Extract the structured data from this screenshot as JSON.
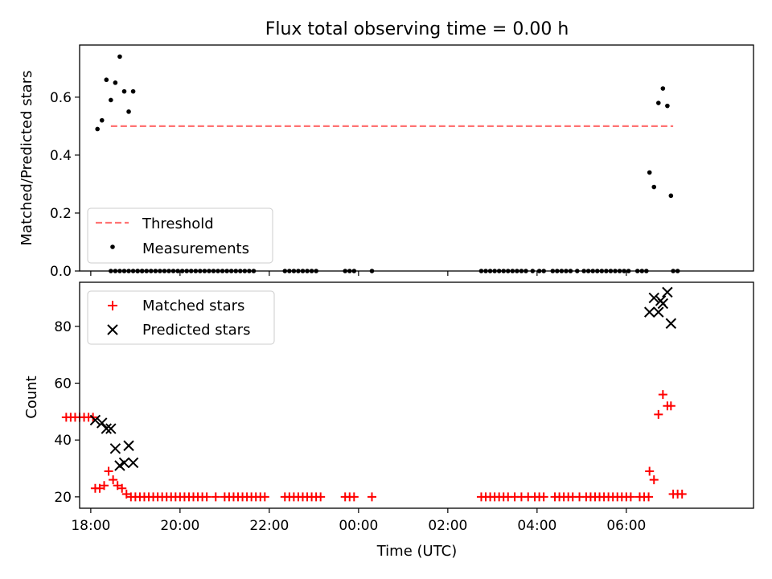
{
  "chart_data": {
    "title": "Flux total observing time = 0.00 h",
    "xlabel": "Time (UTC)",
    "x_unit": "hours since 00:00 UTC (negative = previous day)",
    "xlim": [
      -6.25,
      8.85
    ],
    "x_ticks": [
      {
        "x": -6,
        "label": "18:00"
      },
      {
        "x": -4,
        "label": "20:00"
      },
      {
        "x": -2,
        "label": "22:00"
      },
      {
        "x": 0,
        "label": "00:00"
      },
      {
        "x": 2,
        "label": "02:00"
      },
      {
        "x": 4,
        "label": "04:00"
      },
      {
        "x": 6,
        "label": "06:00"
      }
    ],
    "panels": [
      {
        "id": "ratio",
        "type": "scatter",
        "ylabel": "Matched/Predicted stars",
        "ylim": [
          0,
          0.78
        ],
        "y_ticks": [
          {
            "y": 0.0,
            "label": "0.0"
          },
          {
            "y": 0.2,
            "label": "0.2"
          },
          {
            "y": 0.4,
            "label": "0.4"
          },
          {
            "y": 0.6,
            "label": "0.6"
          }
        ],
        "legend": {
          "position": "lower left",
          "entries": [
            "Threshold",
            "Measurements"
          ]
        },
        "threshold": {
          "name": "Threshold",
          "y": 0.5,
          "x_range": [
            -5.55,
            7.05
          ],
          "color": "#ff7373",
          "style": "dashed"
        },
        "measurements": {
          "name": "Measurements",
          "color": "#000000",
          "x": [
            -5.55,
            -5.45,
            -5.35,
            -5.25,
            -5.15,
            -5.05,
            -4.95,
            -4.85,
            -4.75,
            -4.65,
            -4.55,
            -4.45,
            -4.35,
            -4.25,
            -4.15,
            -4.05,
            -3.95,
            -3.85,
            -3.75,
            -3.65,
            -3.55,
            -3.45,
            -3.35,
            -3.25,
            -3.15,
            -3.05,
            -2.95,
            -2.85,
            -2.75,
            -2.65,
            -2.55,
            -2.45,
            -2.35,
            -1.65,
            -1.55,
            -1.45,
            -1.35,
            -1.25,
            -1.15,
            -1.05,
            -0.95,
            -0.3,
            -0.2,
            -0.1,
            0.3,
            2.75,
            2.85,
            2.95,
            3.05,
            3.15,
            3.25,
            3.35,
            3.45,
            3.55,
            3.65,
            3.75,
            3.9,
            4.05,
            4.15,
            4.35,
            4.45,
            4.55,
            4.65,
            4.75,
            4.9,
            5.05,
            5.15,
            5.25,
            5.35,
            5.45,
            5.55,
            5.65,
            5.75,
            5.85,
            5.95,
            6.05,
            6.25,
            6.35,
            6.45,
            7.05,
            7.15,
            -5.85,
            -5.75,
            -5.65,
            -5.55,
            -5.45,
            -5.35,
            -5.25,
            -5.15,
            -5.05,
            -4.95,
            -4.85,
            6.52,
            6.62,
            6.72,
            6.82,
            6.92,
            7.0
          ],
          "y": [
            0,
            0,
            0,
            0,
            0,
            0,
            0,
            0,
            0,
            0,
            0,
            0,
            0,
            0,
            0,
            0,
            0,
            0,
            0,
            0,
            0,
            0,
            0,
            0,
            0,
            0,
            0,
            0,
            0,
            0,
            0,
            0,
            0,
            0,
            0,
            0,
            0,
            0,
            0,
            0,
            0,
            0,
            0,
            0,
            0,
            0,
            0,
            0,
            0,
            0,
            0,
            0,
            0,
            0,
            0,
            0,
            0,
            0,
            0,
            0,
            0,
            0,
            0,
            0,
            0,
            0,
            0,
            0,
            0,
            0,
            0,
            0,
            0,
            0,
            0,
            0,
            0,
            0,
            0,
            0,
            0,
            0.49,
            0.52,
            0.66,
            0.59,
            0.65,
            0.74,
            0.62,
            0.55,
            0.62,
            0,
            0,
            0.34,
            0.29,
            0.58,
            0.63,
            0.57,
            0.26
          ]
        }
      },
      {
        "id": "counts",
        "type": "scatter",
        "ylabel": "Count",
        "ylim": [
          16,
          95.5
        ],
        "y_ticks": [
          {
            "y": 20,
            "label": "20"
          },
          {
            "y": 40,
            "label": "40"
          },
          {
            "y": 60,
            "label": "60"
          },
          {
            "y": 80,
            "label": "80"
          }
        ],
        "legend": {
          "position": "upper left",
          "entries": [
            "Matched stars",
            "Predicted stars"
          ]
        },
        "matched": {
          "name": "Matched stars",
          "color": "#ff0000",
          "marker": "+",
          "x": [
            -6.55,
            -6.45,
            -6.35,
            -6.25,
            -6.15,
            -6.05,
            -5.95,
            -5.9,
            -5.8,
            -5.7,
            -5.6,
            -5.5,
            -5.4,
            -5.3,
            -5.2,
            -5.1,
            -5.0,
            -4.9,
            -4.8,
            -4.7,
            -4.6,
            -4.5,
            -4.4,
            -4.3,
            -4.2,
            -4.1,
            -4.0,
            -3.9,
            -3.8,
            -3.7,
            -3.6,
            -3.5,
            -3.4,
            -3.2,
            -3.0,
            -2.9,
            -2.8,
            -2.7,
            -2.6,
            -2.5,
            -2.4,
            -2.3,
            -2.2,
            -2.1,
            -1.65,
            -1.55,
            -1.45,
            -1.35,
            -1.25,
            -1.15,
            -1.05,
            -0.95,
            -0.85,
            -0.3,
            -0.2,
            -0.1,
            0.3,
            2.75,
            2.85,
            2.95,
            3.05,
            3.15,
            3.25,
            3.35,
            3.5,
            3.65,
            3.8,
            3.95,
            4.05,
            4.15,
            4.4,
            4.5,
            4.6,
            4.7,
            4.8,
            4.95,
            5.1,
            5.2,
            5.3,
            5.4,
            5.5,
            5.6,
            5.7,
            5.8,
            5.9,
            6.0,
            6.1,
            6.3,
            6.4,
            6.5,
            6.52,
            6.62,
            6.72,
            6.82,
            6.92,
            7.0,
            7.05,
            7.15,
            7.25
          ],
          "y": [
            48,
            48,
            48,
            48,
            48,
            48,
            48,
            23,
            23,
            24,
            29,
            26,
            24,
            23,
            21,
            20,
            20,
            20,
            20,
            20,
            20,
            20,
            20,
            20,
            20,
            20,
            20,
            20,
            20,
            20,
            20,
            20,
            20,
            20,
            20,
            20,
            20,
            20,
            20,
            20,
            20,
            20,
            20,
            20,
            20,
            20,
            20,
            20,
            20,
            20,
            20,
            20,
            20,
            20,
            20,
            20,
            20,
            20,
            20,
            20,
            20,
            20,
            20,
            20,
            20,
            20,
            20,
            20,
            20,
            20,
            20,
            20,
            20,
            20,
            20,
            20,
            20,
            20,
            20,
            20,
            20,
            20,
            20,
            20,
            20,
            20,
            20,
            20,
            20,
            20,
            29,
            26,
            49,
            56,
            52,
            52,
            21,
            21,
            21
          ]
        },
        "predicted": {
          "name": "Predicted stars",
          "color": "#000000",
          "marker": "x",
          "x": [
            -5.9,
            -5.75,
            -5.65,
            -5.55,
            -5.45,
            -5.35,
            -5.25,
            -5.15,
            -5.05,
            6.52,
            6.62,
            6.72,
            6.77,
            6.82,
            6.92,
            7.0
          ],
          "y": [
            47,
            46,
            44,
            44,
            37,
            31,
            32,
            38,
            32,
            85,
            90,
            85,
            89,
            88,
            92,
            81
          ]
        }
      }
    ]
  }
}
